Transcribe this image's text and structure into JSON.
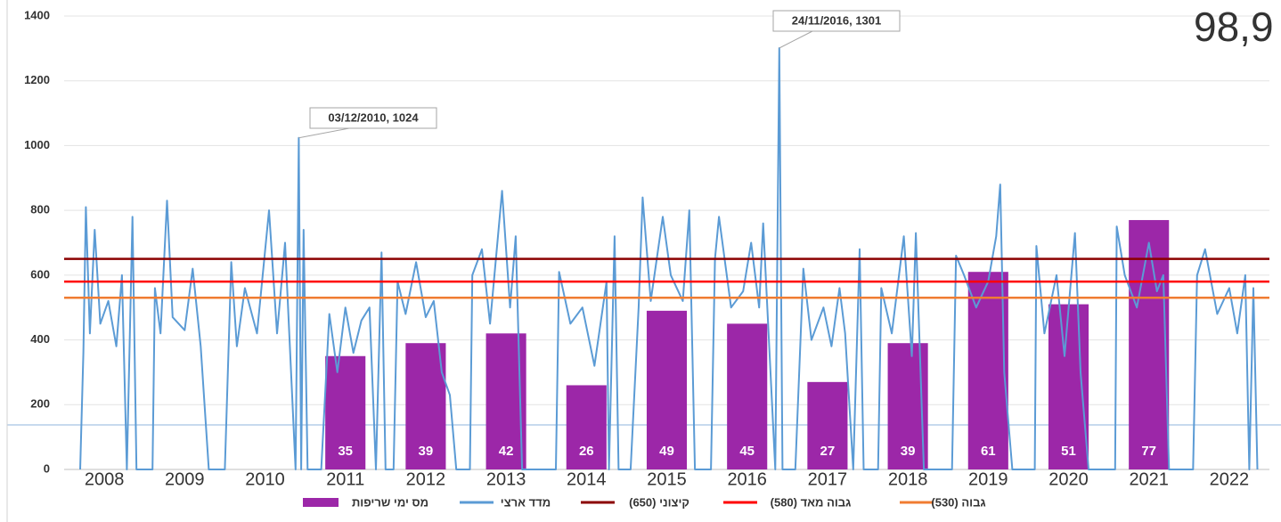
{
  "chart_data": {
    "type": "bar-line",
    "categories": [
      "2008",
      "2009",
      "2010",
      "2011",
      "2012",
      "2013",
      "2014",
      "2015",
      "2016",
      "2017",
      "2018",
      "2019",
      "2020",
      "2021",
      "2022"
    ],
    "ylim": [
      0,
      1400
    ],
    "yticks": [
      0,
      200,
      400,
      600,
      800,
      1000,
      1200,
      1400
    ],
    "y2lim": [
      0,
      140
    ],
    "xlim": [
      2008,
      2023
    ],
    "grid": true,
    "series": [
      {
        "name": "מס ימי שריפות",
        "color": "#9c27a8",
        "axis": "y2",
        "values": [
          null,
          null,
          null,
          35,
          39,
          42,
          26,
          49,
          45,
          27,
          39,
          61,
          51,
          77,
          null
        ]
      },
      {
        "name": "מדד ארצי",
        "color": "#5b9bd5",
        "x": [
          2008.2,
          2008.24,
          2008.27,
          2008.32,
          2008.38,
          2008.45,
          2008.55,
          2008.65,
          2008.72,
          2008.78,
          2008.85,
          2008.9,
          2009.0,
          2009.1,
          2009.13,
          2009.2,
          2009.28,
          2009.35,
          2009.5,
          2009.6,
          2009.7,
          2009.8,
          2010.0,
          2010.08,
          2010.15,
          2010.25,
          2010.4,
          2010.55,
          2010.65,
          2010.75,
          2010.88,
          2010.92,
          2010.95,
          2010.98,
          2011.03,
          2011.2,
          2011.3,
          2011.4,
          2011.5,
          2011.6,
          2011.7,
          2011.8,
          2011.88,
          2011.95,
          2012.0,
          2012.1,
          2012.15,
          2012.25,
          2012.38,
          2012.5,
          2012.6,
          2012.7,
          2012.8,
          2012.88,
          2013.0,
          2013.05,
          2013.08,
          2013.2,
          2013.3,
          2013.45,
          2013.55,
          2013.62,
          2013.7,
          2014.0,
          2014.12,
          2014.16,
          2014.3,
          2014.45,
          2014.6,
          2014.75,
          2014.78,
          2014.85,
          2014.9,
          2015.05,
          2015.15,
          2015.2,
          2015.3,
          2015.45,
          2015.55,
          2015.7,
          2015.78,
          2015.85,
          2016.0,
          2016.05,
          2016.1,
          2016.15,
          2016.3,
          2016.45,
          2016.55,
          2016.65,
          2016.7,
          2016.85,
          2016.9,
          2016.94,
          2017.1,
          2017.2,
          2017.3,
          2017.45,
          2017.55,
          2017.65,
          2017.72,
          2017.82,
          2017.9,
          2017.95,
          2018.05,
          2018.13,
          2018.17,
          2018.3,
          2018.45,
          2018.55,
          2018.6,
          2018.7,
          2019.0,
          2019.05,
          2019.1,
          2019.2,
          2019.35,
          2019.5,
          2019.6,
          2019.65,
          2019.7,
          2019.8,
          2020.0,
          2020.08,
          2020.1,
          2020.2,
          2020.35,
          2020.45,
          2020.58,
          2020.65,
          2020.75,
          2021.0,
          2021.08,
          2021.1,
          2021.2,
          2021.35,
          2021.5,
          2021.6,
          2021.68,
          2021.75,
          2022.0,
          2022.05,
          2022.1,
          2022.2,
          2022.35,
          2022.5,
          2022.6,
          2022.7,
          2022.75,
          2022.8,
          2022.85
        ],
        "values": [
          0,
          360,
          810,
          420,
          740,
          450,
          520,
          380,
          600,
          0,
          780,
          0,
          0,
          0,
          560,
          420,
          830,
          470,
          430,
          620,
          380,
          0,
          0,
          640,
          380,
          560,
          420,
          800,
          420,
          700,
          0,
          1024,
          0,
          740,
          0,
          0,
          480,
          300,
          500,
          360,
          460,
          500,
          0,
          670,
          0,
          0,
          580,
          480,
          640,
          470,
          520,
          300,
          230,
          0,
          0,
          0,
          600,
          680,
          450,
          860,
          500,
          720,
          0,
          0,
          0,
          610,
          450,
          500,
          320,
          580,
          0,
          720,
          0,
          0,
          500,
          840,
          520,
          780,
          600,
          520,
          800,
          0,
          0,
          0,
          650,
          780,
          500,
          550,
          700,
          500,
          760,
          0,
          1301,
          0,
          0,
          620,
          400,
          500,
          380,
          560,
          420,
          0,
          680,
          0,
          0,
          0,
          560,
          420,
          720,
          350,
          730,
          0,
          0,
          0,
          660,
          600,
          500,
          580,
          720,
          880,
          300,
          0,
          0,
          0,
          690,
          420,
          600,
          350,
          730,
          300,
          0,
          0,
          0,
          750,
          600,
          500,
          700,
          550,
          600,
          0,
          0,
          0,
          600,
          680,
          480,
          560,
          420,
          600,
          0,
          560,
          0
        ]
      }
    ],
    "thresholds": [
      {
        "name": "קיצוני (650)",
        "value": 650,
        "color": "#8b0000"
      },
      {
        "name": "גבוה מאד (580)",
        "value": 580,
        "color": "#ff0000"
      },
      {
        "name": "גבוה (530)",
        "value": 530,
        "color": "#f07c32"
      }
    ],
    "annotations": [
      {
        "text": "03/12/2010, 1024",
        "x": 2010.92,
        "y": 1024
      },
      {
        "text": "24/11/2016, 1301",
        "x": 2016.9,
        "y": 1301
      }
    ],
    "corner_text": "98,9"
  }
}
